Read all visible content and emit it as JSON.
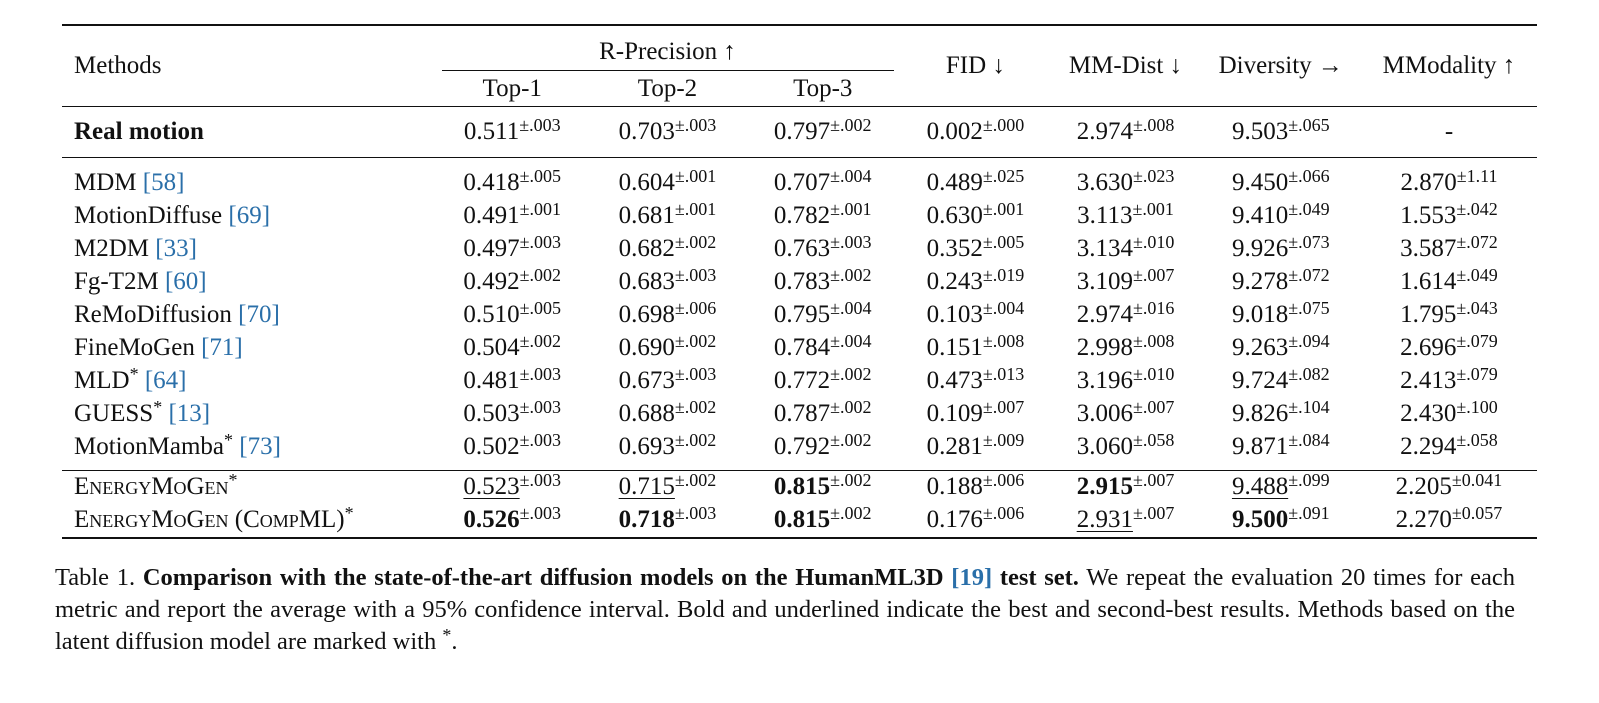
{
  "table": {
    "header": {
      "methods": "Methods",
      "r_precision": "R-Precision ↑",
      "top1": "Top-1",
      "top2": "Top-2",
      "top3": "Top-3",
      "fid": "FID ↓",
      "mm_dist": "MM-Dist ↓",
      "diversity": "Diversity →",
      "mmodality": "MModality ↑"
    },
    "real": {
      "name": "Real motion",
      "top1": "0.511",
      "top1_ci": "±.003",
      "top2": "0.703",
      "top2_ci": "±.003",
      "top3": "0.797",
      "top3_ci": "±.002",
      "fid": "0.002",
      "fid_ci": "±.000",
      "mmdist": "2.974",
      "mmdist_ci": "±.008",
      "div": "9.503",
      "div_ci": "±.065",
      "mmod": "-"
    },
    "rows": [
      {
        "name": "MDM ",
        "cite": "[58]",
        "star": "",
        "top1": "0.418",
        "top1_ci": "±.005",
        "top2": "0.604",
        "top2_ci": "±.001",
        "top3": "0.707",
        "top3_ci": "±.004",
        "fid": "0.489",
        "fid_ci": "±.025",
        "mmdist": "3.630",
        "mmdist_ci": "±.023",
        "div": "9.450",
        "div_ci": "±.066",
        "mmod": "2.870",
        "mmod_ci": "±1.11"
      },
      {
        "name": "MotionDiffuse ",
        "cite": "[69]",
        "star": "",
        "top1": "0.491",
        "top1_ci": "±.001",
        "top2": "0.681",
        "top2_ci": "±.001",
        "top3": "0.782",
        "top3_ci": "±.001",
        "fid": "0.630",
        "fid_ci": "±.001",
        "mmdist": "3.113",
        "mmdist_ci": "±.001",
        "div": "9.410",
        "div_ci": "±.049",
        "mmod": "1.553",
        "mmod_ci": "±.042"
      },
      {
        "name": "M2DM ",
        "cite": "[33]",
        "star": "",
        "top1": "0.497",
        "top1_ci": "±.003",
        "top2": "0.682",
        "top2_ci": "±.002",
        "top3": "0.763",
        "top3_ci": "±.003",
        "fid": "0.352",
        "fid_ci": "±.005",
        "mmdist": "3.134",
        "mmdist_ci": "±.010",
        "div": "9.926",
        "div_ci": "±.073",
        "mmod": "3.587",
        "mmod_ci": "±.072"
      },
      {
        "name": "Fg-T2M ",
        "cite": "[60]",
        "star": "",
        "top1": "0.492",
        "top1_ci": "±.002",
        "top2": "0.683",
        "top2_ci": "±.003",
        "top3": "0.783",
        "top3_ci": "±.002",
        "fid": "0.243",
        "fid_ci": "±.019",
        "mmdist": "3.109",
        "mmdist_ci": "±.007",
        "div": "9.278",
        "div_ci": "±.072",
        "mmod": "1.614",
        "mmod_ci": "±.049"
      },
      {
        "name": "ReMoDiffusion ",
        "cite": "[70]",
        "star": "",
        "top1": "0.510",
        "top1_ci": "±.005",
        "top2": "0.698",
        "top2_ci": "±.006",
        "top3": "0.795",
        "top3_ci": "±.004",
        "fid": "0.103",
        "fid_ci": "±.004",
        "mmdist": "2.974",
        "mmdist_ci": "±.016",
        "div": "9.018",
        "div_ci": "±.075",
        "mmod": "1.795",
        "mmod_ci": "±.043"
      },
      {
        "name": "FineMoGen ",
        "cite": "[71]",
        "star": "",
        "top1": "0.504",
        "top1_ci": "±.002",
        "top2": "0.690",
        "top2_ci": "±.002",
        "top3": "0.784",
        "top3_ci": "±.004",
        "fid": "0.151",
        "fid_ci": "±.008",
        "mmdist": "2.998",
        "mmdist_ci": "±.008",
        "div": "9.263",
        "div_ci": "±.094",
        "mmod": "2.696",
        "mmod_ci": "±.079"
      },
      {
        "name": "MLD",
        "cite": "[64]",
        "star": "*",
        "top1": "0.481",
        "top1_ci": "±.003",
        "top2": "0.673",
        "top2_ci": "±.003",
        "top3": "0.772",
        "top3_ci": "±.002",
        "fid": "0.473",
        "fid_ci": "±.013",
        "mmdist": "3.196",
        "mmdist_ci": "±.010",
        "div": "9.724",
        "div_ci": "±.082",
        "mmod": "2.413",
        "mmod_ci": "±.079"
      },
      {
        "name": "GUESS",
        "cite": "[13]",
        "star": "*",
        "top1": "0.503",
        "top1_ci": "±.003",
        "top2": "0.688",
        "top2_ci": "±.002",
        "top3": "0.787",
        "top3_ci": "±.002",
        "fid": "0.109",
        "fid_ci": "±.007",
        "mmdist": "3.006",
        "mmdist_ci": "±.007",
        "div": "9.826",
        "div_ci": "±.104",
        "mmod": "2.430",
        "mmod_ci": "±.100"
      },
      {
        "name": "MotionMamba",
        "cite": "[73]",
        "star": "*",
        "top1": "0.502",
        "top1_ci": "±.003",
        "top2": "0.693",
        "top2_ci": "±.002",
        "top3": "0.792",
        "top3_ci": "±.002",
        "fid": "0.281",
        "fid_ci": "±.009",
        "mmdist": "3.060",
        "mmdist_ci": "±.058",
        "div": "9.871",
        "div_ci": "±.084",
        "mmod": "2.294",
        "mmod_ci": "±.058"
      }
    ],
    "ours": [
      {
        "name": "EnergyMoGen",
        "star": "*",
        "top1": "0.523",
        "top1_ci": "±.003",
        "top2": "0.715",
        "top2_ci": "±.002",
        "top3": "0.815",
        "top3_ci": "±.002",
        "fid": "0.188",
        "fid_ci": "±.006",
        "mmdist": "2.915",
        "mmdist_ci": "±.007",
        "div": "9.488",
        "div_ci": "±.099",
        "mmod": "2.205",
        "mmod_ci": "±0.041"
      },
      {
        "name": "EnergyMoGen (CompML)",
        "star": "*",
        "top1": "0.526",
        "top1_ci": "±.003",
        "top2": "0.718",
        "top2_ci": "±.003",
        "top3": "0.815",
        "top3_ci": "±.002",
        "fid": "0.176",
        "fid_ci": "±.006",
        "mmdist": "2.931",
        "mmdist_ci": "±.007",
        "div": "9.500",
        "div_ci": "±.091",
        "mmod": "2.270",
        "mmod_ci": "±0.057"
      }
    ]
  },
  "caption": {
    "label": "Table 1. ",
    "bold": "Comparison with the state-of-the-art diffusion models on the HumanML3D ",
    "cite": "[19]",
    "bold_end": " test set.",
    "text": " We repeat the evaluation 20 times for each metric and report the average with a 95% confidence interval.  Bold and underlined indicate the best and second-best results. Methods based on the latent diffusion model are marked with ",
    "star": "*",
    "end": "."
  }
}
